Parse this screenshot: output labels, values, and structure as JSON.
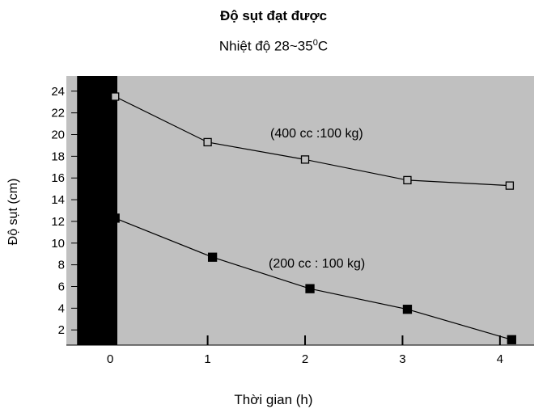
{
  "chart_data": {
    "type": "line",
    "title": "Độ sụt đạt được",
    "subtitle_text": "Nhiệt độ 28~35",
    "subtitle_sup": "0",
    "subtitle_unit": "C",
    "xlabel": "Thời gian (h)",
    "ylabel": "Độ sụt (cm)",
    "x": [
      0,
      1,
      2,
      3,
      4
    ],
    "x_ticks": [
      "0",
      "1",
      "2",
      "3",
      "4"
    ],
    "y_ticks": [
      "2",
      "4",
      "6",
      "8",
      "10",
      "12",
      "14",
      "16",
      "18",
      "20",
      "22",
      "24"
    ],
    "xlim": [
      -0.45,
      4.35
    ],
    "ylim": [
      0.6,
      25.4
    ],
    "grid": false,
    "background_color": "#c0c0c0",
    "band_color": "#000000",
    "series": [
      {
        "name": "(400 cc :100 kg)",
        "marker": "open-square",
        "x": [
          0.05,
          1.0,
          2.0,
          3.05,
          4.1
        ],
        "values": [
          23.5,
          19.3,
          17.7,
          15.8,
          15.3
        ]
      },
      {
        "name": "(200 cc : 100 kg)",
        "marker": "filled-square",
        "x": [
          0.05,
          1.05,
          2.05,
          3.05,
          4.12
        ],
        "values": [
          12.3,
          8.7,
          5.8,
          3.9,
          1.1
        ]
      }
    ]
  }
}
